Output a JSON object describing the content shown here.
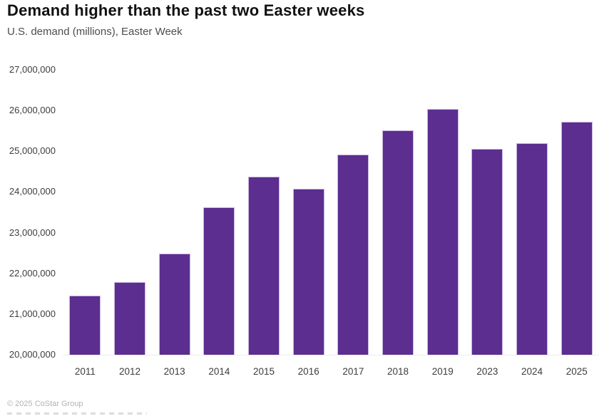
{
  "header": {
    "title": "Demand higher than the past two Easter weeks",
    "subtitle": "U.S. demand (millions), Easter Week"
  },
  "chart_data": {
    "type": "bar",
    "title": "Demand higher than the past two Easter weeks",
    "subtitle": "U.S. demand (millions), Easter Week",
    "categories": [
      "2011",
      "2012",
      "2013",
      "2014",
      "2015",
      "2016",
      "2017",
      "2018",
      "2019",
      "2023",
      "2024",
      "2025"
    ],
    "values": [
      21450000,
      21780000,
      22490000,
      23620000,
      24380000,
      24080000,
      24920000,
      25510000,
      26040000,
      25060000,
      25200000,
      25720000
    ],
    "xlabel": "",
    "ylabel": "U.S. demand (millions)",
    "ylim": [
      20000000,
      27000000
    ],
    "y_ticks": [
      20000000,
      21000000,
      22000000,
      23000000,
      24000000,
      25000000,
      26000000,
      27000000
    ],
    "y_tick_labels_top_to_bottom": [
      "27,000,000",
      "26,000,000",
      "25,000,000",
      "24,000,000",
      "23,000,000",
      "22,000,000",
      "21,000,000",
      "20,000,000"
    ],
    "grid": false,
    "legend_position": "none"
  },
  "footer": {
    "copyright": "© 2025 CoStar Group"
  },
  "colors": {
    "bar": "#5B2E90",
    "bar_border": "#C9B6DF",
    "title_text": "#111111",
    "subtitle_text": "#4D4D4D",
    "axis_text": "#3D3D3D",
    "footer_text": "#B3B3B3"
  }
}
